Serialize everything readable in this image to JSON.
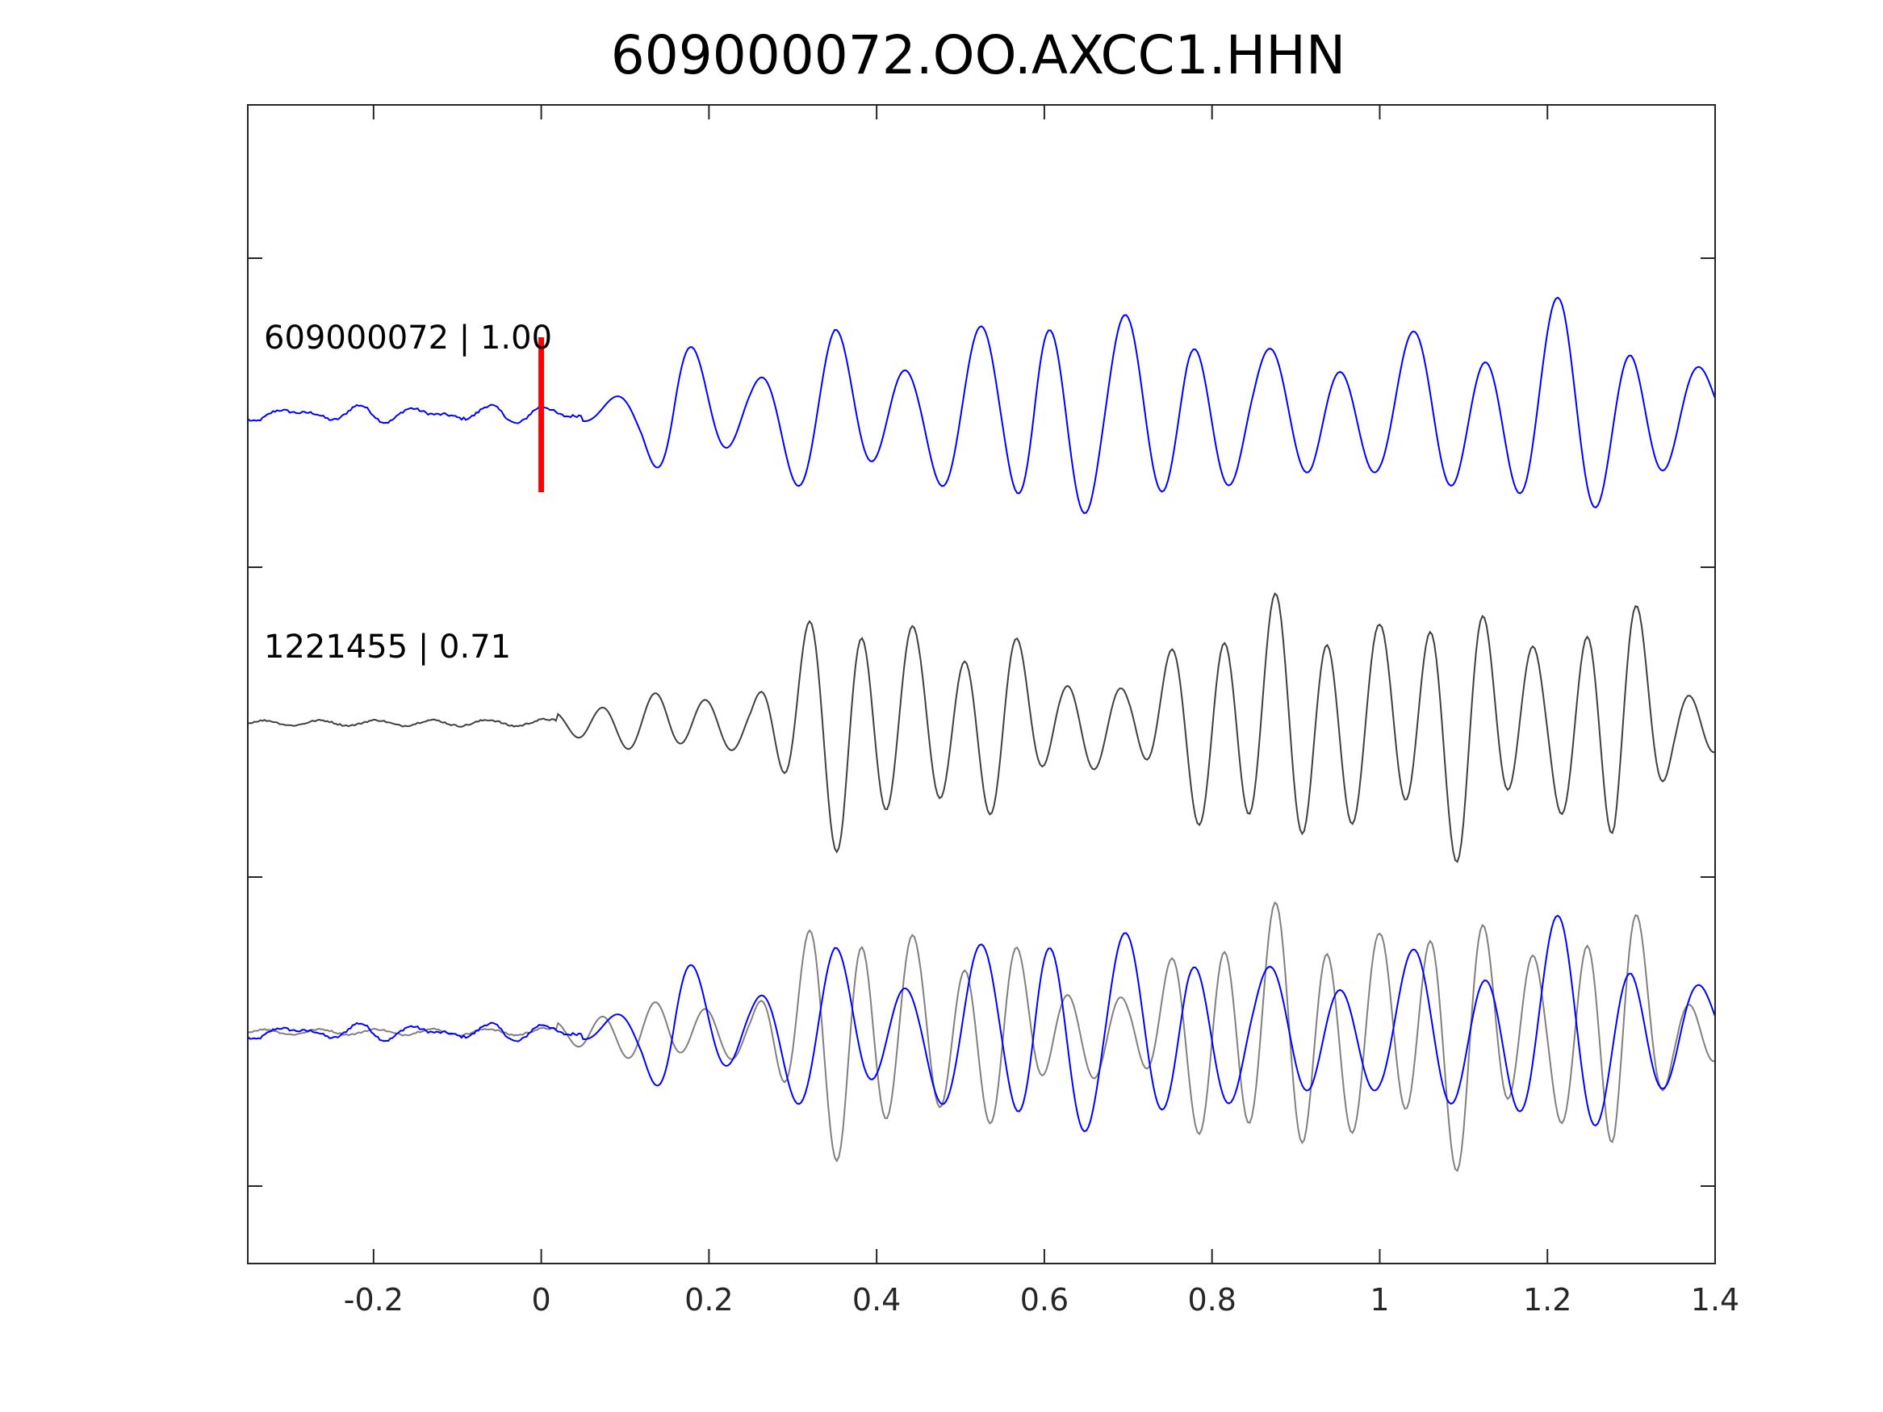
{
  "chart_data": {
    "type": "line",
    "title": "609000072.OO.AXCC1.HHN",
    "xlabel": "",
    "ylabel": "",
    "xlim": [
      -0.35,
      1.4
    ],
    "x_ticks": [
      -0.2,
      0,
      0.2,
      0.4,
      0.6,
      0.8,
      1,
      1.2,
      1.4
    ],
    "x_tick_labels": [
      "-0.2",
      "0",
      "0.2",
      "0.4",
      "0.6",
      "0.8",
      "1",
      "1.2",
      "1.4"
    ],
    "grid": false,
    "legend": "none",
    "pick_marker": {
      "x": 0,
      "color": "#ff0000"
    },
    "traces": [
      {
        "label": "609000072 | 1.00",
        "color": "#0000ff"
      },
      {
        "label": "1221455 | 0.71",
        "color": "#404040"
      }
    ],
    "overlay": {
      "colors": [
        "#0000ff",
        "#808080"
      ]
    }
  }
}
